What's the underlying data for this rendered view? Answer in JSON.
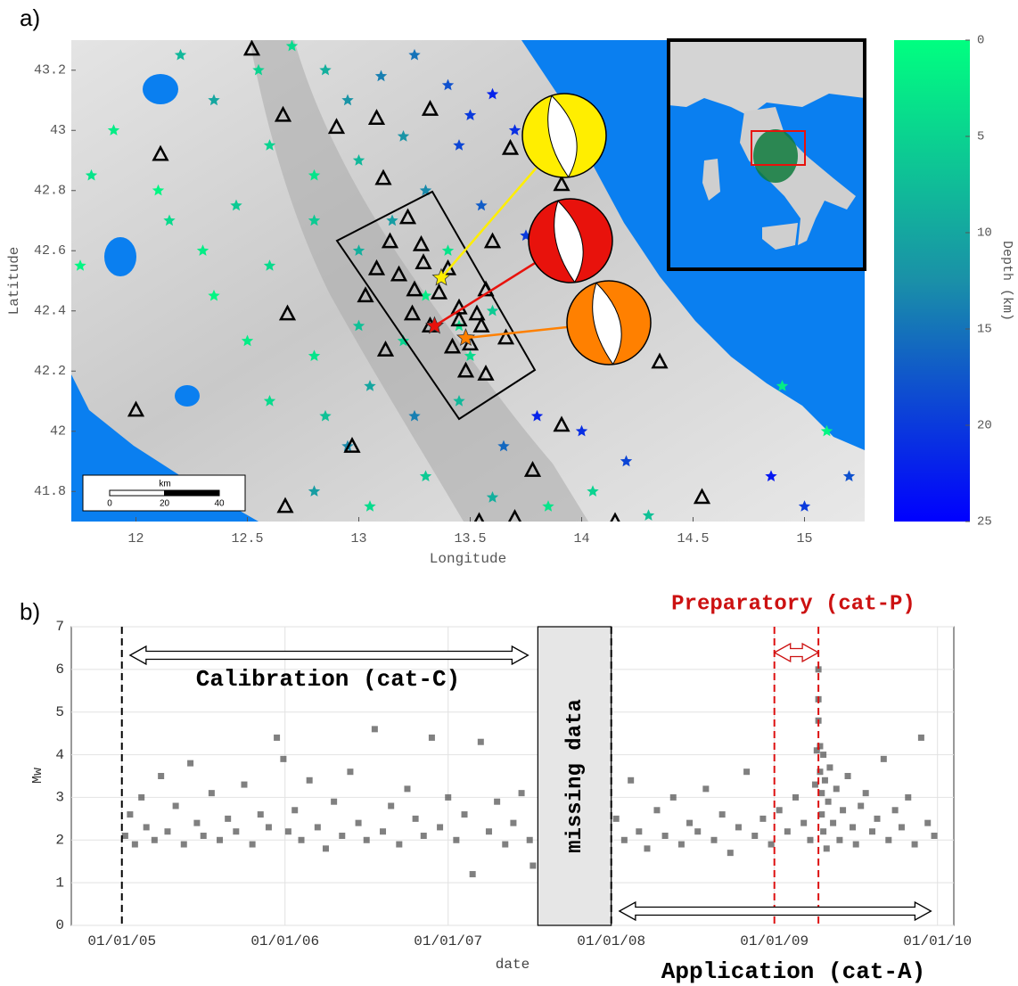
{
  "chart_data": [
    {
      "type": "map",
      "label": "a)",
      "xlabel": "Longitude",
      "ylabel": "Latitude",
      "xlim": [
        11.71,
        15.27
      ],
      "ylim": [
        41.7,
        43.3
      ],
      "xticks": [
        12,
        12.5,
        13,
        13.5,
        14,
        14.5,
        15
      ],
      "yticks": [
        41.8,
        42,
        42.2,
        42.4,
        42.6,
        42.8,
        43,
        43.2
      ],
      "colorbar": {
        "label": "Depth (km)",
        "lim": [
          0,
          25
        ],
        "ticks": [
          0,
          5,
          10,
          15,
          20,
          25
        ],
        "colors": [
          "#00ff80",
          "#1a90a8",
          "#0000ff"
        ]
      },
      "events": {
        "lon": [
          12.2,
          12.35,
          12.55,
          12.7,
          12.85,
          12.95,
          13.1,
          13.25,
          13.4,
          13.5,
          13.6,
          13.7,
          13.45,
          13.2,
          13.0,
          12.8,
          12.6,
          12.45,
          12.3,
          12.15,
          11.8,
          11.75,
          12.6,
          12.8,
          13.0,
          13.15,
          13.3,
          13.55,
          13.75,
          13.4,
          13.3,
          13.45,
          13.5,
          13.2,
          13.6,
          13.0,
          12.8,
          12.5,
          12.35,
          12.6,
          12.85,
          13.05,
          13.25,
          13.45,
          13.65,
          13.8,
          14.0,
          14.2,
          14.05,
          13.85,
          13.6,
          13.3,
          13.05,
          12.8,
          12.95,
          14.3,
          14.9,
          15.1,
          15.2,
          14.85,
          15.0,
          11.9,
          12.1
        ],
        "lat": [
          43.25,
          43.1,
          43.2,
          43.28,
          43.2,
          43.1,
          43.18,
          43.25,
          43.15,
          43.05,
          43.12,
          43.0,
          42.95,
          42.98,
          42.9,
          42.85,
          42.95,
          42.75,
          42.6,
          42.7,
          42.85,
          42.55,
          42.55,
          42.7,
          42.6,
          42.7,
          42.8,
          42.75,
          42.65,
          42.6,
          42.45,
          42.35,
          42.25,
          42.3,
          42.4,
          42.35,
          42.25,
          42.3,
          42.45,
          42.1,
          42.05,
          42.15,
          42.05,
          42.1,
          41.95,
          42.05,
          42.0,
          41.9,
          41.8,
          41.75,
          41.78,
          41.85,
          41.75,
          41.8,
          41.95,
          41.72,
          42.15,
          42.0,
          41.85,
          41.85,
          41.75,
          43.0,
          42.8
        ],
        "depth": [
          8,
          10,
          5,
          4,
          9,
          12,
          14,
          15,
          18,
          20,
          22,
          21,
          19,
          12,
          8,
          3,
          5,
          6,
          2,
          4,
          3,
          1,
          4,
          6,
          9,
          11,
          13,
          17,
          20,
          3,
          2,
          3,
          4,
          5,
          6,
          7,
          3,
          2,
          1,
          4,
          7,
          10,
          14,
          8,
          16,
          22,
          21,
          19,
          5,
          3,
          9,
          6,
          4,
          11,
          13,
          7,
          2,
          1,
          18,
          23,
          20,
          2,
          1
        ]
      },
      "stations": {
        "lon": [
          12.52,
          12.66,
          12.9,
          12.11,
          13.08,
          13.32,
          13.68,
          13.11,
          13.91,
          13.22,
          13.14,
          13.28,
          13.6,
          13.08,
          13.29,
          13.4,
          13.18,
          13.03,
          13.25,
          13.36,
          13.57,
          13.45,
          13.53,
          12.68,
          13.24,
          13.55,
          13.45,
          13.32,
          13.42,
          13.5,
          13.66,
          13.12,
          13.48,
          13.57,
          14.35,
          12.0,
          13.91,
          12.97,
          13.78,
          14.54,
          12.67,
          13.54,
          13.7,
          14.15
        ],
        "lat": [
          43.27,
          43.05,
          43.01,
          42.92,
          43.04,
          43.07,
          42.94,
          42.84,
          42.82,
          42.71,
          42.63,
          42.62,
          42.63,
          42.54,
          42.56,
          42.54,
          42.52,
          42.45,
          42.47,
          42.46,
          42.47,
          42.41,
          42.39,
          42.39,
          42.39,
          42.35,
          42.37,
          42.35,
          42.28,
          42.29,
          42.31,
          42.27,
          42.2,
          42.19,
          42.23,
          42.07,
          42.02,
          41.95,
          41.87,
          41.78,
          41.75,
          41.7,
          41.71,
          41.7
        ]
      },
      "mainshocks": {
        "lon": [
          13.37,
          13.34,
          13.48
        ],
        "lat": [
          42.51,
          42.35,
          42.31
        ],
        "colors": [
          "#ffee00",
          "#e8120c",
          "#ff8000"
        ]
      },
      "scalebar": {
        "title": "km",
        "ticks": [
          0,
          20,
          40
        ]
      }
    },
    {
      "type": "scatter",
      "label": "b)",
      "xlabel": "date",
      "ylabel": "Mw",
      "xlim": [
        2004.69,
        2010.1
      ],
      "ylim": [
        0,
        7
      ],
      "yticks": [
        0,
        1,
        2,
        3,
        4,
        5,
        6,
        7
      ],
      "xticks": [
        {
          "value": 2005,
          "label": "01/01/05"
        },
        {
          "value": 2006,
          "label": "01/01/06"
        },
        {
          "value": 2007,
          "label": "01/01/07"
        },
        {
          "value": 2008,
          "label": "01/01/08"
        },
        {
          "value": 2009,
          "label": "01/01/09"
        },
        {
          "value": 2010,
          "label": "01/01/10"
        }
      ],
      "grid": true,
      "color": "#4a4a4a",
      "x": [
        2005.02,
        2005.05,
        2005.08,
        2005.12,
        2005.15,
        2005.2,
        2005.24,
        2005.28,
        2005.33,
        2005.38,
        2005.42,
        2005.46,
        2005.5,
        2005.55,
        2005.6,
        2005.65,
        2005.7,
        2005.75,
        2005.8,
        2005.85,
        2005.9,
        2005.95,
        2005.99,
        2006.02,
        2006.06,
        2006.1,
        2006.15,
        2006.2,
        2006.25,
        2006.3,
        2006.35,
        2006.4,
        2006.45,
        2006.5,
        2006.55,
        2006.6,
        2006.65,
        2006.7,
        2006.75,
        2006.8,
        2006.85,
        2006.9,
        2006.95,
        2007.0,
        2007.05,
        2007.1,
        2007.15,
        2007.2,
        2007.25,
        2007.3,
        2007.35,
        2007.4,
        2007.45,
        2007.5,
        2007.52,
        2008.03,
        2008.08,
        2008.12,
        2008.17,
        2008.22,
        2008.28,
        2008.33,
        2008.38,
        2008.43,
        2008.48,
        2008.53,
        2008.58,
        2008.63,
        2008.68,
        2008.73,
        2008.78,
        2008.83,
        2008.88,
        2008.93,
        2008.98,
        2009.03,
        2009.08,
        2009.13,
        2009.18,
        2009.22,
        2009.25,
        2009.26,
        2009.27,
        2009.27,
        2009.27,
        2009.28,
        2009.28,
        2009.29,
        2009.29,
        2009.3,
        2009.3,
        2009.31,
        2009.32,
        2009.33,
        2009.34,
        2009.36,
        2009.38,
        2009.4,
        2009.42,
        2009.45,
        2009.48,
        2009.5,
        2009.53,
        2009.56,
        2009.6,
        2009.63,
        2009.67,
        2009.7,
        2009.74,
        2009.78,
        2009.82,
        2009.86,
        2009.9,
        2009.94,
        2009.98
      ],
      "y": [
        2.1,
        2.6,
        1.9,
        3.0,
        2.3,
        2.0,
        3.5,
        2.2,
        2.8,
        1.9,
        3.8,
        2.4,
        2.1,
        3.1,
        2.0,
        2.5,
        2.2,
        3.3,
        1.9,
        2.6,
        2.3,
        4.4,
        3.9,
        2.2,
        2.7,
        2.0,
        3.4,
        2.3,
        1.8,
        2.9,
        2.1,
        3.6,
        2.4,
        2.0,
        4.6,
        2.2,
        2.8,
        1.9,
        3.2,
        2.5,
        2.1,
        4.4,
        2.3,
        3.0,
        2.0,
        2.6,
        1.2,
        4.3,
        2.2,
        2.9,
        1.9,
        2.4,
        3.1,
        2.0,
        1.4,
        2.5,
        2.0,
        3.4,
        2.2,
        1.8,
        2.7,
        2.1,
        3.0,
        1.9,
        2.4,
        2.2,
        3.2,
        2.0,
        2.6,
        1.7,
        2.3,
        3.6,
        2.1,
        2.5,
        1.9,
        2.7,
        2.2,
        3.0,
        2.4,
        2.0,
        3.3,
        4.1,
        6.0,
        5.3,
        4.8,
        4.2,
        3.6,
        3.1,
        2.6,
        4.0,
        2.2,
        3.4,
        1.8,
        2.9,
        3.7,
        2.4,
        3.2,
        2.0,
        2.7,
        3.5,
        2.3,
        1.9,
        2.8,
        3.1,
        2.2,
        2.5,
        3.9,
        2.0,
        2.7,
        2.3,
        3.0,
        1.9,
        4.4,
        2.4,
        2.1
      ],
      "vlines": [
        {
          "x": 2005,
          "color": "#000000"
        },
        {
          "x": 2008,
          "color": "#000000"
        },
        {
          "x": 2009,
          "color": "#dd1111"
        },
        {
          "x": 2009.27,
          "color": "#dd1111"
        }
      ],
      "missing": {
        "label": "missing data",
        "range": [
          2007.55,
          2008
        ]
      },
      "periods": [
        {
          "label": "Calibration (cat-C)",
          "range": [
            2005.05,
            2007.49
          ],
          "color": "#000000"
        },
        {
          "label": "Preparatory (cat-P)",
          "range": [
            2009,
            2009.27
          ],
          "color": "#cc1111"
        },
        {
          "label": "Application (cat-A)",
          "range": [
            2008.05,
            2009.96
          ],
          "color": "#000000"
        }
      ]
    }
  ]
}
